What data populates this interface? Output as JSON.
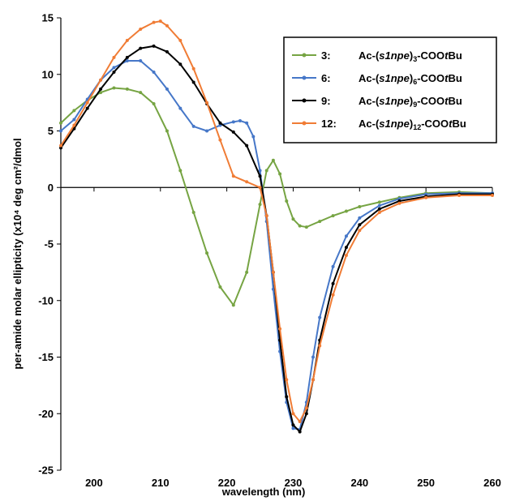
{
  "chart_data": {
    "type": "line",
    "title": "",
    "xlabel": "wavelength (nm)",
    "ylabel": "per-amide molar ellipticity (x10⁴ deg cm²/dmol",
    "xlim": [
      195,
      260
    ],
    "ylim": [
      -25,
      15
    ],
    "xticks": [
      200,
      210,
      220,
      230,
      240,
      250,
      260
    ],
    "yticks": [
      15,
      10,
      5,
      0,
      -5,
      -10,
      -15,
      -20,
      -25
    ],
    "grid": false,
    "legend_position": "top-right",
    "series": [
      {
        "name": "3: Ac-(s1npe)3-COOtBu",
        "legend_id": "3:",
        "legend_prefix": "Ac-(",
        "legend_italic": "s1npe",
        "legend_sub": "3",
        "legend_mid": "-COO",
        "legend_italic2": "t",
        "legend_suffix": "Bu",
        "color": "#76A443",
        "x": [
          195,
          197,
          199,
          201,
          203,
          205,
          207,
          209,
          211,
          213,
          215,
          217,
          219,
          221,
          223,
          225,
          226,
          227,
          228,
          229,
          230,
          231,
          232,
          234,
          236,
          238,
          240,
          243,
          246,
          250,
          255,
          260
        ],
        "y": [
          5.7,
          6.8,
          7.7,
          8.4,
          8.8,
          8.7,
          8.4,
          7.4,
          5.0,
          1.5,
          -2.2,
          -5.8,
          -8.8,
          -10.4,
          -7.5,
          -1.5,
          1.5,
          2.4,
          1.2,
          -1.2,
          -2.8,
          -3.4,
          -3.5,
          -3.0,
          -2.5,
          -2.1,
          -1.7,
          -1.3,
          -0.9,
          -0.5,
          -0.4,
          -0.5
        ]
      },
      {
        "name": "6: Ac-(s1npe)6-COOtBu",
        "legend_id": "6:",
        "legend_prefix": "Ac-(",
        "legend_italic": "s1npe",
        "legend_sub": "6",
        "legend_mid": "-COO",
        "legend_italic2": "t",
        "legend_suffix": "Bu",
        "color": "#4677C8",
        "x": [
          195,
          197,
          199,
          201,
          203,
          205,
          207,
          209,
          211,
          213,
          215,
          217,
          219,
          221,
          222,
          223,
          224,
          225,
          226,
          227,
          228,
          229,
          230,
          231,
          232,
          233,
          234,
          236,
          238,
          240,
          243,
          246,
          250,
          255,
          260
        ],
        "y": [
          5.0,
          6.0,
          7.8,
          9.5,
          10.6,
          11.2,
          11.2,
          10.2,
          8.7,
          7.0,
          5.4,
          5.0,
          5.5,
          5.8,
          5.9,
          5.7,
          4.5,
          1.5,
          -3.0,
          -9.0,
          -14.5,
          -19.0,
          -21.3,
          -21.4,
          -19.0,
          -15.0,
          -11.5,
          -7.0,
          -4.3,
          -2.7,
          -1.6,
          -1.0,
          -0.6,
          -0.5,
          -0.5
        ]
      },
      {
        "name": "9: Ac-(s1npe)9-COOtBu",
        "legend_id": "9:",
        "legend_prefix": "Ac-(",
        "legend_italic": "s1npe",
        "legend_sub": "9",
        "legend_mid": "-COO",
        "legend_italic2": "t",
        "legend_suffix": "Bu",
        "color": "#000000",
        "x": [
          195,
          197,
          199,
          201,
          203,
          205,
          207,
          209,
          211,
          213,
          215,
          217,
          219,
          221,
          223,
          225,
          226,
          227,
          228,
          229,
          230,
          231,
          232,
          233,
          234,
          236,
          238,
          240,
          243,
          246,
          250,
          255,
          260
        ],
        "y": [
          3.5,
          5.2,
          7.0,
          8.7,
          10.2,
          11.5,
          12.3,
          12.5,
          12.0,
          10.9,
          9.3,
          7.4,
          5.7,
          4.9,
          3.7,
          1.0,
          -2.5,
          -7.5,
          -13.5,
          -18.5,
          -21.0,
          -21.6,
          -20.0,
          -17.0,
          -13.5,
          -8.5,
          -5.3,
          -3.3,
          -1.9,
          -1.2,
          -0.8,
          -0.6,
          -0.6
        ]
      },
      {
        "name": "12: Ac-(s1npe)12-COOtBu",
        "legend_id": "12:",
        "legend_prefix": "Ac-(",
        "legend_italic": "s1npe",
        "legend_sub": "12",
        "legend_mid": "-COO",
        "legend_italic2": "t",
        "legend_suffix": "Bu",
        "color": "#F07C35",
        "x": [
          195,
          197,
          199,
          201,
          203,
          205,
          207,
          209,
          210,
          211,
          213,
          215,
          217,
          219,
          221,
          223,
          225,
          226,
          227,
          228,
          229,
          230,
          231,
          232,
          233,
          234,
          236,
          238,
          240,
          243,
          246,
          250,
          255,
          260
        ],
        "y": [
          3.7,
          5.5,
          7.5,
          9.5,
          11.5,
          13.0,
          14.0,
          14.6,
          14.7,
          14.3,
          13.0,
          10.5,
          7.5,
          4.2,
          1.0,
          0.5,
          0.0,
          -2.5,
          -7.5,
          -12.5,
          -17.0,
          -20.0,
          -20.7,
          -19.5,
          -17.0,
          -14.0,
          -9.5,
          -6.0,
          -3.8,
          -2.2,
          -1.4,
          -0.9,
          -0.7,
          -0.7
        ]
      }
    ]
  }
}
